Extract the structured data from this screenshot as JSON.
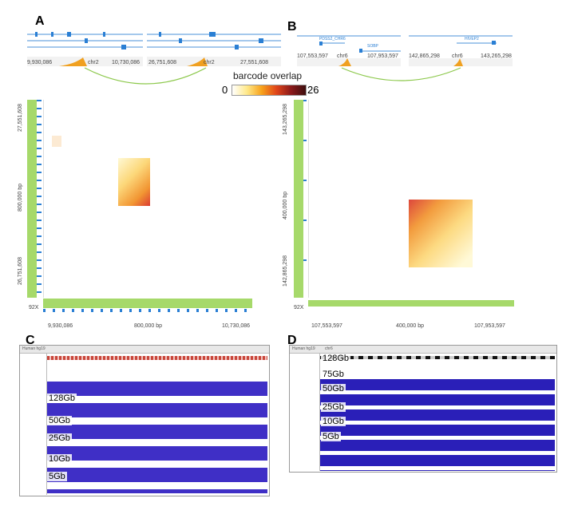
{
  "panels": {
    "A": "A",
    "B": "B",
    "C": "C",
    "D": "D"
  },
  "colorbar": {
    "title": "barcode overlap",
    "min": "0",
    "max": "26"
  },
  "panelA": {
    "coords": [
      "9,930,086",
      "10,730,086",
      "26,751,608",
      "27,551,608"
    ],
    "chr_left": "chr2",
    "chr_right": "chr2",
    "y_top": "27,551,608",
    "y_mid": "800,000 bp",
    "y_bot": "26,751,608",
    "x_left": "9,930,086",
    "x_mid": "800,000 bp",
    "x_right": "10,730,086",
    "cov": "92X"
  },
  "panelB": {
    "coords": [
      "107,553,597",
      "107,953,597",
      "142,865,298",
      "143,265,298"
    ],
    "chr_left": "chr6",
    "chr_right": "chr6",
    "genes": [
      "PDSS2_CHR6",
      "SOBP",
      "HIVEP2"
    ],
    "y_top": "143,265,298",
    "y_mid": "400,000 bp",
    "y_bot": "142,865,298",
    "x_left": "107,553,597",
    "x_mid": "400,000 bp",
    "x_right": "107,953,597",
    "cov": "92X"
  },
  "panelC": {
    "tracks": [
      "128Gb",
      "50Gb",
      "25Gb",
      "10Gb",
      "5Gb"
    ],
    "genome": "Human hg19"
  },
  "panelD": {
    "tracks": [
      "128Gb",
      "75Gb",
      "50Gb",
      "25Gb",
      "10Gb",
      "5Gb"
    ],
    "genome": "Human hg19",
    "chrom": "chr6"
  }
}
